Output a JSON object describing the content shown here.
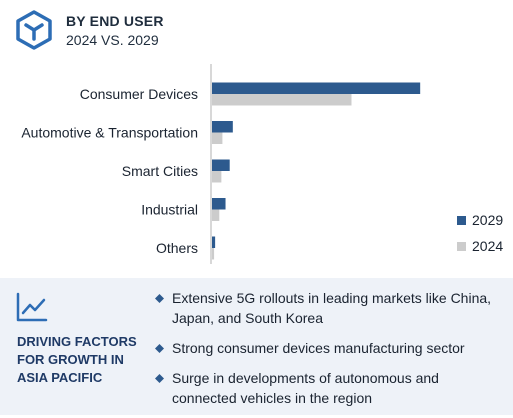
{
  "header": {
    "title": "BY END USER",
    "subtitle": "2024 VS. 2029",
    "icon": "cube-icon"
  },
  "colors": {
    "series_2029": "#2d5a8e",
    "series_2024": "#cccccc",
    "panel_bg": "#eef2f8",
    "accent": "#2d6db5"
  },
  "chart_data": {
    "type": "bar",
    "orientation": "horizontal",
    "categories": [
      "Consumer Devices",
      "Automotive & Transportation",
      "Smart Cities",
      "Industrial",
      "Others"
    ],
    "series": [
      {
        "name": "2029",
        "values": [
          100,
          10,
          8.5,
          6.5,
          1.5
        ]
      },
      {
        "name": "2024",
        "values": [
          67,
          5,
          4.5,
          3.5,
          1
        ]
      }
    ],
    "xlim": [
      0,
      110
    ],
    "axis_labels_shown": false,
    "grid": false,
    "legend_position": "bottom-right"
  },
  "legend": [
    {
      "label": "2029"
    },
    {
      "label": "2024"
    }
  ],
  "panel": {
    "icon": "trend-line-icon",
    "heading_lines": [
      "DRIVING FACTORS",
      "FOR GROWTH IN",
      "ASIA PACIFIC"
    ],
    "bullets": [
      "Extensive 5G rollouts in leading markets like China, Japan, and South Korea",
      "Strong consumer devices manufacturing sector",
      "Surge in developments of autonomous and connected vehicles in the region"
    ]
  }
}
